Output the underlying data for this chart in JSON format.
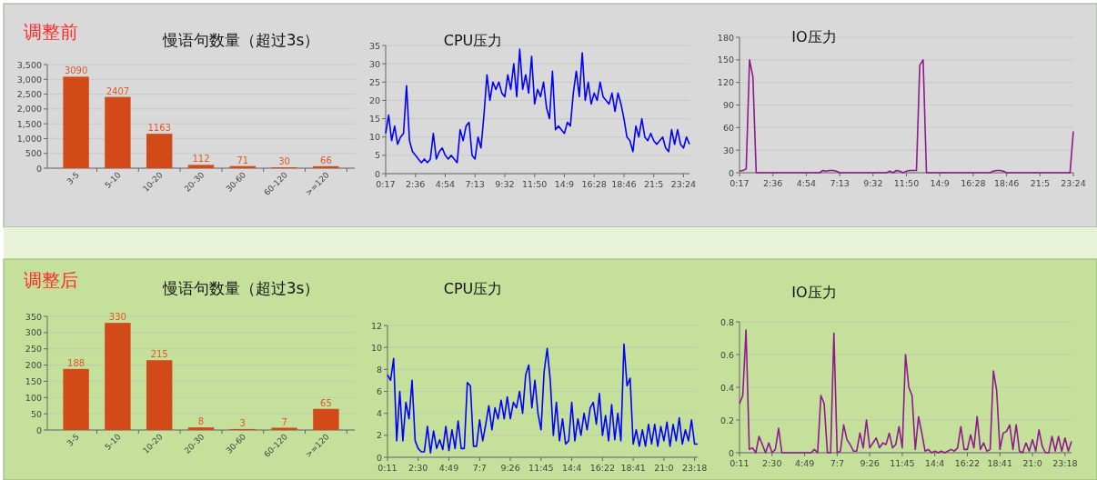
{
  "chart_data": [
    {
      "type": "bar",
      "title": "慢语句数量（超过3s）",
      "annotations": [
        "调整前"
      ],
      "categories": [
        "3-5",
        "5-10",
        "10-20",
        "20-30",
        "30-60",
        "60-120",
        ">=120"
      ],
      "values": [
        3090,
        2407,
        1163,
        112,
        71,
        30,
        66
      ],
      "color": "#d24a17",
      "data_labels": true,
      "ylim": [
        0,
        3500
      ],
      "yticks": [
        0,
        {
          "value": 500,
          "label": "500"
        },
        {
          "value": 1000,
          "label": "1,000"
        },
        {
          "value": 1500,
          "label": "1,500"
        },
        {
          "value": 2000,
          "label": "2,000"
        },
        {
          "value": 2500,
          "label": "2,500"
        },
        {
          "value": 3000,
          "label": "3,000"
        },
        {
          "value": 3500,
          "label": "3,500"
        }
      ],
      "grid": "y"
    },
    {
      "type": "line",
      "title": "CPU压力",
      "categories": [
        "0:17",
        null,
        null,
        null,
        null,
        null,
        null,
        null,
        null,
        null,
        "2:36",
        null,
        null,
        null,
        null,
        null,
        null,
        null,
        null,
        null,
        "4:54",
        null,
        null,
        null,
        null,
        null,
        null,
        null,
        null,
        null,
        "7:13",
        null,
        null,
        null,
        null,
        null,
        null,
        null,
        null,
        null,
        "9:32",
        null,
        null,
        null,
        null,
        null,
        null,
        null,
        null,
        null,
        "11:50",
        null,
        null,
        null,
        null,
        null,
        null,
        null,
        null,
        null,
        "14:9",
        null,
        null,
        null,
        null,
        null,
        null,
        null,
        null,
        null,
        "16:28",
        null,
        null,
        null,
        null,
        null,
        null,
        null,
        null,
        null,
        "18:46",
        null,
        null,
        null,
        null,
        null,
        null,
        null,
        null,
        null,
        "21:5",
        null,
        null,
        null,
        null,
        null,
        null,
        null,
        null,
        null,
        "23:24",
        null,
        null
      ],
      "values": [
        11,
        16,
        9,
        13,
        8,
        10,
        11,
        24,
        9,
        6,
        5,
        4,
        3,
        4,
        3,
        4,
        11,
        4,
        6,
        7,
        5,
        4,
        5,
        4,
        3,
        12,
        9,
        13,
        14,
        5,
        4,
        10,
        7,
        16,
        27,
        20,
        25,
        23,
        25,
        22,
        21,
        27,
        23,
        30,
        21,
        34,
        23,
        27,
        22,
        32,
        19,
        23,
        21,
        25,
        18,
        15,
        28,
        12,
        13,
        12,
        11,
        14,
        13,
        22,
        28,
        21,
        33,
        20,
        25,
        19,
        22,
        20,
        25,
        21,
        20,
        19,
        22,
        17,
        22,
        19,
        15,
        10,
        9,
        6,
        13,
        10,
        15,
        10,
        9,
        11,
        9,
        8,
        9,
        10,
        7,
        6,
        12,
        8,
        12,
        8,
        7,
        10,
        8
      ],
      "color": "#0000ff",
      "ylim": [
        0,
        35
      ],
      "yticks": [
        0,
        5,
        10,
        15,
        20,
        25,
        30,
        35
      ],
      "grid": "y"
    },
    {
      "type": "line",
      "title": "IO压力",
      "categories": [
        "0:17",
        null,
        null,
        null,
        null,
        null,
        null,
        null,
        null,
        null,
        "2:36",
        null,
        null,
        null,
        null,
        null,
        null,
        null,
        null,
        null,
        "4:54",
        null,
        null,
        null,
        null,
        null,
        null,
        null,
        null,
        null,
        "7:13",
        null,
        null,
        null,
        null,
        null,
        null,
        null,
        null,
        null,
        "9:32",
        null,
        null,
        null,
        null,
        null,
        null,
        null,
        null,
        null,
        "11:50",
        null,
        null,
        null,
        null,
        null,
        null,
        null,
        null,
        null,
        "14:9",
        null,
        null,
        null,
        null,
        null,
        null,
        null,
        null,
        null,
        "16:28",
        null,
        null,
        null,
        null,
        null,
        null,
        null,
        null,
        null,
        "18:46",
        null,
        null,
        null,
        null,
        null,
        null,
        null,
        null,
        null,
        "21:5",
        null,
        null,
        null,
        null,
        null,
        null,
        null,
        null,
        null,
        "23:24"
      ],
      "values": [
        2,
        3,
        5,
        150,
        128,
        0,
        0,
        0,
        0,
        0,
        0,
        0,
        0,
        0,
        0,
        0,
        0,
        0,
        0,
        0,
        0,
        0,
        0,
        0,
        0,
        3,
        2,
        3,
        3,
        2,
        0,
        0,
        0,
        0,
        0,
        0,
        0,
        0,
        0,
        0,
        0,
        0,
        0,
        0,
        0,
        2,
        0,
        3,
        2,
        0,
        2,
        3,
        3,
        3,
        143,
        150,
        0,
        0,
        0,
        0,
        0,
        0,
        0,
        0,
        0,
        0,
        0,
        0,
        0,
        0,
        0,
        0,
        0,
        0,
        0,
        0,
        2,
        3,
        3,
        2,
        0,
        0,
        0,
        0,
        0,
        0,
        0,
        0,
        0,
        0,
        0,
        0,
        0,
        0,
        0,
        0,
        0,
        0,
        0,
        0,
        55
      ],
      "color": "#8e1a8e",
      "ylim": [
        0,
        180
      ],
      "yticks": [
        0,
        30,
        60,
        90,
        120,
        150,
        180
      ],
      "grid": "y"
    },
    {
      "type": "bar",
      "title": "慢语句数量（超过3s）",
      "annotations": [
        "调整后"
      ],
      "categories": [
        "3-5",
        "5-10",
        "10-20",
        "20-30",
        "30-60",
        "60-120",
        ">=120"
      ],
      "values": [
        188,
        330,
        215,
        8,
        3,
        7,
        65
      ],
      "color": "#d24a17",
      "data_labels": true,
      "ylim": [
        0,
        350
      ],
      "yticks": [
        0,
        50,
        100,
        150,
        200,
        250,
        300,
        350
      ],
      "grid": "y"
    },
    {
      "type": "line",
      "title": "CPU压力",
      "categories": [
        "0:11",
        null,
        null,
        null,
        null,
        null,
        null,
        null,
        null,
        null,
        "2:30",
        null,
        null,
        null,
        null,
        null,
        null,
        null,
        null,
        null,
        "4:49",
        null,
        null,
        null,
        null,
        null,
        null,
        null,
        null,
        null,
        "7:7",
        null,
        null,
        null,
        null,
        null,
        null,
        null,
        null,
        null,
        "9:26",
        null,
        null,
        null,
        null,
        null,
        null,
        null,
        null,
        null,
        "11:45",
        null,
        null,
        null,
        null,
        null,
        null,
        null,
        null,
        null,
        "14:4",
        null,
        null,
        null,
        null,
        null,
        null,
        null,
        null,
        null,
        "16:22",
        null,
        null,
        null,
        null,
        null,
        null,
        null,
        null,
        null,
        "18:41",
        null,
        null,
        null,
        null,
        null,
        null,
        null,
        null,
        null,
        "21:0",
        null,
        null,
        null,
        null,
        null,
        null,
        null,
        null,
        null,
        "23:18",
        null
      ],
      "values": [
        7.5,
        7,
        9,
        1.5,
        6,
        1.5,
        5,
        3.5,
        7,
        1.5,
        0.8,
        0.5,
        0.5,
        2.8,
        0.4,
        2.4,
        0.8,
        1.6,
        0.7,
        2.8,
        0.6,
        2.5,
        0.8,
        3.3,
        0.8,
        0.8,
        6.8,
        6.5,
        1,
        1,
        3.4,
        1.5,
        3,
        4.7,
        2.5,
        4.5,
        3.5,
        5.2,
        3.5,
        5.5,
        3.5,
        5,
        4.5,
        6,
        4,
        7.5,
        8.4,
        4.5,
        7,
        4,
        2.5,
        7.8,
        9.9,
        7,
        2,
        5,
        1.5,
        3.5,
        1.2,
        1.5,
        5,
        1.5,
        3.5,
        2,
        4,
        2.5,
        4.5,
        5,
        3,
        5.8,
        2,
        3.8,
        1.5,
        4.8,
        1.6,
        4,
        1.5,
        10.3,
        6.5,
        7.2,
        1.2,
        2.5,
        1,
        2.5,
        1,
        3,
        1.2,
        3,
        1,
        2.8,
        1.5,
        3.2,
        1,
        3,
        1.5,
        3.6,
        1.2,
        2.5,
        1.5,
        3.4,
        1.2,
        1.2
      ],
      "color": "#0000ff",
      "ylim": [
        0,
        12
      ],
      "yticks": [
        0,
        2,
        4,
        6,
        8,
        10,
        12
      ],
      "grid": "y"
    },
    {
      "type": "line",
      "title": "IO压力",
      "categories": [
        "0:11",
        null,
        null,
        null,
        null,
        null,
        null,
        null,
        null,
        null,
        "2:30",
        null,
        null,
        null,
        null,
        null,
        null,
        null,
        null,
        null,
        "4:49",
        null,
        null,
        null,
        null,
        null,
        null,
        null,
        null,
        null,
        "7:7",
        null,
        null,
        null,
        null,
        null,
        null,
        null,
        null,
        null,
        "9:26",
        null,
        null,
        null,
        null,
        null,
        null,
        null,
        null,
        null,
        "11:45",
        null,
        null,
        null,
        null,
        null,
        null,
        null,
        null,
        null,
        "14:4",
        null,
        null,
        null,
        null,
        null,
        null,
        null,
        null,
        null,
        "16:22",
        null,
        null,
        null,
        null,
        null,
        null,
        null,
        null,
        null,
        "18:41",
        null,
        null,
        null,
        null,
        null,
        null,
        null,
        null,
        null,
        "21:0",
        null,
        null,
        null,
        null,
        null,
        null,
        null,
        null,
        null,
        "23:18",
        null,
        null
      ],
      "values": [
        0.3,
        0.35,
        0.75,
        0.02,
        0.03,
        0,
        0.1,
        0.05,
        0,
        0.06,
        0,
        0.02,
        0.15,
        0,
        0,
        0,
        0,
        0,
        0,
        0,
        0,
        0,
        0,
        0.02,
        0,
        0.35,
        0.3,
        0,
        0,
        0.73,
        0,
        0.01,
        0.17,
        0.08,
        0.05,
        0.01,
        0.01,
        0.12,
        0.03,
        0.2,
        0.03,
        0.06,
        0.09,
        0.03,
        0.06,
        0.05,
        0.12,
        0.03,
        0.05,
        0.16,
        0.03,
        0.6,
        0.4,
        0.35,
        0.02,
        0.22,
        0.12,
        0.01,
        0.02,
        0,
        0.01,
        0,
        0.01,
        0,
        0.01,
        0.02,
        0.01,
        0.03,
        0.16,
        0.02,
        0.02,
        0.11,
        0.03,
        0.22,
        0.02,
        0.06,
        0.01,
        0.02,
        0.5,
        0.38,
        0.02,
        0.12,
        0.13,
        0.17,
        0.02,
        0.17,
        0.01,
        0,
        0.06,
        0.01,
        0.08,
        0.01,
        0.14,
        0.04,
        0,
        0,
        0.1,
        0.01,
        0.1,
        0.01,
        0.09,
        0.01,
        0.07
      ],
      "color": "#8e1a8e",
      "ylim": [
        0,
        0.8
      ],
      "yticks": [
        0,
        0.2,
        0.4,
        0.6,
        0.8
      ],
      "grid": "y"
    }
  ]
}
